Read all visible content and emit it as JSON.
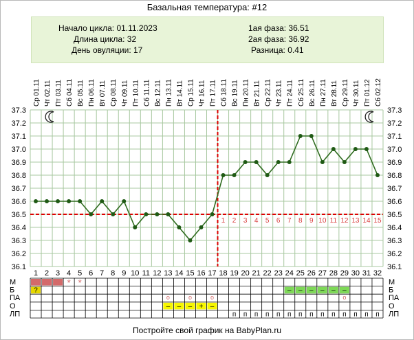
{
  "title": "Базальная температура: #12",
  "info": {
    "cycle_start": "Начало цикла: 01.11.2023",
    "cycle_length": "Длина цикла: 32",
    "ovulation_day": "День овуляции: 17",
    "phase1": "1ая фаза: 36.51",
    "phase2": "2ая фаза: 36.92",
    "difference": "Разница: 0.41"
  },
  "footer": "Постройте свой график на BabyPlan.ru",
  "colors": {
    "line": "#2e6b1e",
    "point": "#1f5a14",
    "coverline": "#dd0000",
    "grid": "#a8c8a0",
    "luteal_numbers": "#d94040",
    "period": "#d46a6a",
    "egg_white": "#7ed957",
    "question": "#e6d800",
    "lh": "#f7f700"
  },
  "icons": {
    "moon_left": "moon-icon",
    "moon_right": "moon-icon"
  },
  "chart_data": {
    "type": "line",
    "title": "Базальная температура: #12",
    "x": [
      1,
      2,
      3,
      4,
      5,
      6,
      7,
      8,
      9,
      10,
      11,
      12,
      13,
      14,
      15,
      16,
      17,
      18,
      19,
      20,
      21,
      22,
      23,
      24,
      25,
      26,
      27,
      28,
      29,
      30,
      31,
      32
    ],
    "dates": [
      "Ср 01.11",
      "Чт 02.11",
      "Пт 03.11",
      "Сб 04.11",
      "Вс 05.11",
      "Пн 06.11",
      "Вт 07.11",
      "Ср 08.11",
      "Чт 09.11",
      "Пт 10.11",
      "Сб 11.11",
      "Вс 12.11",
      "Пн 13.11",
      "Вт 14.11",
      "Ср 15.11",
      "Чт 16.11",
      "Пт 17.11",
      "Сб 18.11",
      "Вс 19.11",
      "Пн 20.11",
      "Вт 21.11",
      "Ср 22.11",
      "Чт 23.11",
      "Пт 24.11",
      "Сб 25.11",
      "Вс 26.11",
      "Пн 27.11",
      "Вт 28.11",
      "Ср 29.11",
      "Чт 30.11",
      "Пт 01.12",
      "Сб 02.12"
    ],
    "series": [
      {
        "values": [
          36.6,
          36.6,
          36.6,
          36.6,
          36.6,
          36.5,
          36.6,
          36.5,
          36.6,
          36.4,
          36.5,
          36.5,
          36.5,
          36.4,
          36.3,
          36.4,
          36.5,
          36.8,
          36.8,
          36.9,
          36.9,
          36.8,
          36.9,
          36.9,
          37.1,
          37.1,
          36.9,
          37.0,
          36.9,
          37.0,
          37.0,
          36.8
        ]
      }
    ],
    "ylim": [
      36.1,
      37.3
    ],
    "y_ticks": [
      "36.1",
      "36.2",
      "36.3",
      "36.4",
      "36.5",
      "36.6",
      "36.7",
      "36.8",
      "36.9",
      "37.0",
      "37.1",
      "37.2",
      "37.3"
    ],
    "coverline": 36.5,
    "ovulation_day": 17,
    "luteal_day_numbers": [
      "1",
      "2",
      "3",
      "4",
      "5",
      "6",
      "7",
      "8",
      "9",
      "10",
      "11",
      "12",
      "13",
      "14",
      "15"
    ],
    "grid": true,
    "legend": "none",
    "row_labels": [
      "М",
      "Б",
      "ПА",
      "О",
      "ЛП"
    ],
    "markers": {
      "period_days": [
        1,
        2,
        3
      ],
      "period_star_days": [
        4,
        5
      ],
      "egg_white_question_days": [
        1
      ],
      "egg_white_days": [
        24,
        25,
        26,
        27,
        28,
        29
      ],
      "intercourse_days": [
        13,
        15,
        17,
        29
      ],
      "lh_days": [
        13,
        14,
        15,
        16,
        17
      ],
      "lh_symbols": [
        "–",
        "–",
        "–",
        "+",
        "–"
      ],
      "lp_days": [
        19,
        20,
        21,
        22,
        23,
        24,
        25,
        26,
        27,
        28,
        29,
        30,
        31,
        32
      ]
    },
    "marker_texts": {
      "star": "*",
      "question": "?",
      "dash": "–",
      "circle": "o",
      "lp": "п"
    }
  }
}
